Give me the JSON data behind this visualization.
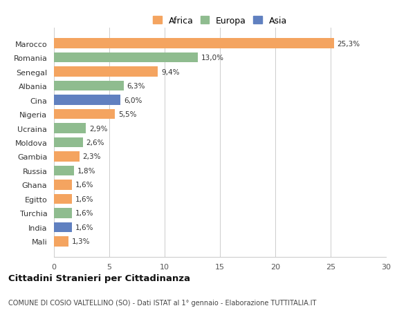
{
  "categories": [
    "Mali",
    "India",
    "Turchia",
    "Egitto",
    "Ghana",
    "Russia",
    "Gambia",
    "Moldova",
    "Ucraina",
    "Nigeria",
    "Cina",
    "Albania",
    "Senegal",
    "Romania",
    "Marocco"
  ],
  "values": [
    1.3,
    1.6,
    1.6,
    1.6,
    1.6,
    1.8,
    2.3,
    2.6,
    2.9,
    5.5,
    6.0,
    6.3,
    9.4,
    13.0,
    25.3
  ],
  "labels": [
    "1,3%",
    "1,6%",
    "1,6%",
    "1,6%",
    "1,6%",
    "1,8%",
    "2,3%",
    "2,6%",
    "2,9%",
    "5,5%",
    "6,0%",
    "6,3%",
    "9,4%",
    "13,0%",
    "25,3%"
  ],
  "colors": [
    "#F4A460",
    "#6080C0",
    "#8FBC8F",
    "#F4A460",
    "#F4A460",
    "#8FBC8F",
    "#F4A460",
    "#8FBC8F",
    "#8FBC8F",
    "#F4A460",
    "#6080C0",
    "#8FBC8F",
    "#F4A460",
    "#8FBC8F",
    "#F4A460"
  ],
  "legend_labels": [
    "Africa",
    "Europa",
    "Asia"
  ],
  "legend_colors": [
    "#F4A460",
    "#8FBC8F",
    "#6080C0"
  ],
  "xlim": [
    0,
    30
  ],
  "xticks": [
    0,
    5,
    10,
    15,
    20,
    25,
    30
  ],
  "title": "Cittadini Stranieri per Cittadinanza",
  "subtitle": "COMUNE DI COSIO VALTELLINO (SO) - Dati ISTAT al 1° gennaio - Elaborazione TUTTITALIA.IT",
  "background_color": "#ffffff",
  "grid_color": "#cccccc"
}
